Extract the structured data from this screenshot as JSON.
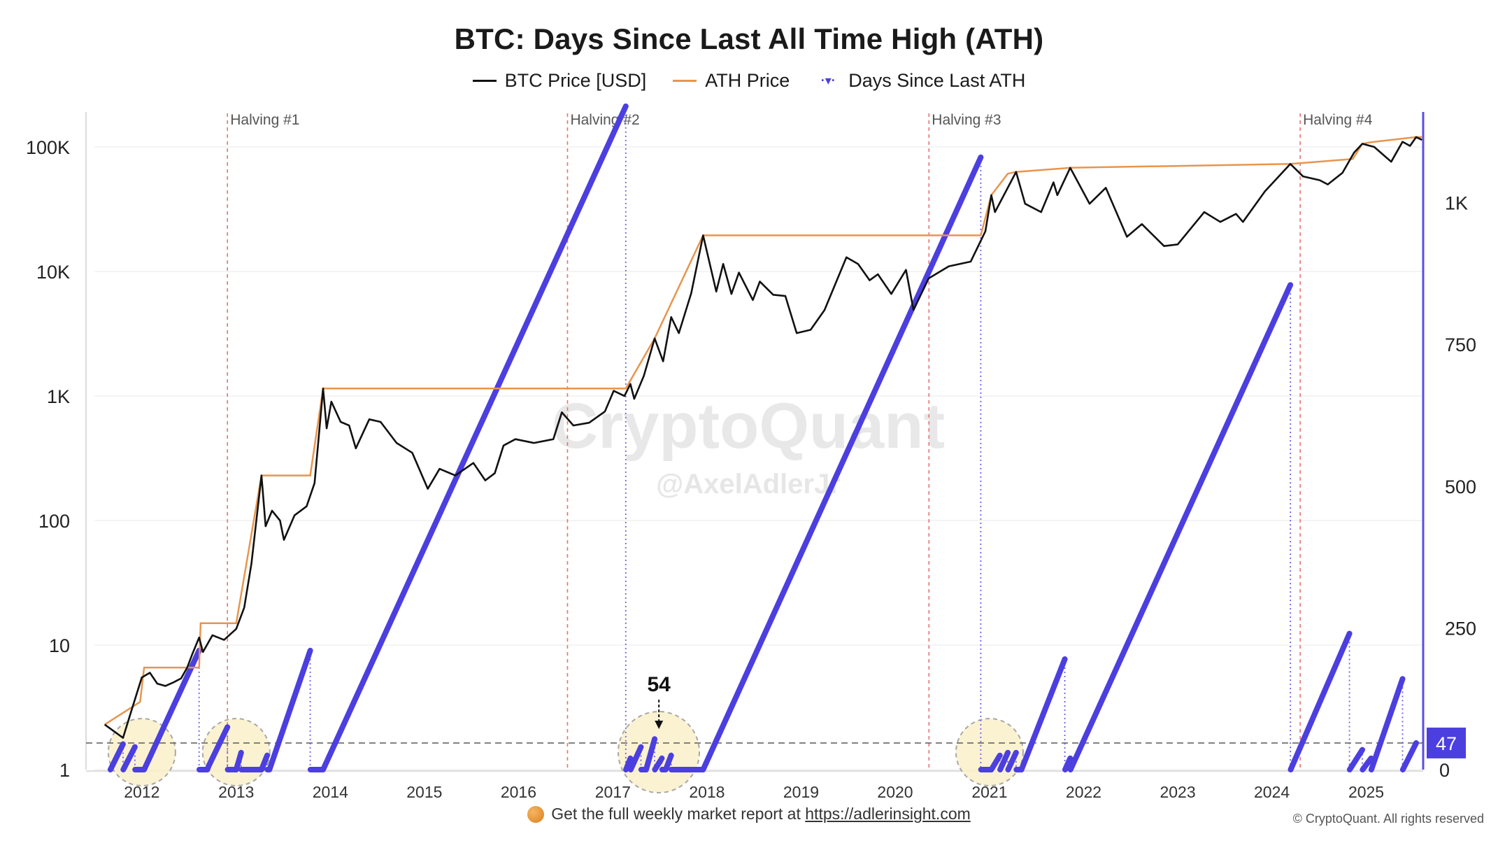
{
  "chart_data": {
    "type": "line",
    "title": "BTC: Days Since Last All Time High (ATH)",
    "legend": [
      {
        "name": "BTC Price [USD]",
        "color": "#111111",
        "style": "line"
      },
      {
        "name": "ATH Price",
        "color": "#e8954d",
        "style": "line"
      },
      {
        "name": "Days Since Last ATH",
        "color": "#4b3fe0",
        "style": "dot"
      }
    ],
    "legend_position": "top-center",
    "x_axis": {
      "type": "date",
      "range": [
        "2011-07-01",
        "2025-08-10"
      ],
      "ticks": [
        "2012",
        "2013",
        "2014",
        "2015",
        "2016",
        "2017",
        "2018",
        "2019",
        "2020",
        "2021",
        "2022",
        "2023",
        "2024",
        "2025"
      ]
    },
    "y_left": {
      "scale": "log",
      "range": [
        1,
        100000
      ],
      "ticks": [
        {
          "value": 1,
          "label": "1"
        },
        {
          "value": 10,
          "label": "10"
        },
        {
          "value": 100,
          "label": "100"
        },
        {
          "value": 1000,
          "label": "1K"
        },
        {
          "value": 10000,
          "label": "10K"
        },
        {
          "value": 100000,
          "label": "100K"
        }
      ]
    },
    "y_right": {
      "scale": "linear",
      "range": [
        0,
        1160
      ],
      "ticks": [
        {
          "value": 0,
          "label": "0"
        },
        {
          "value": 250,
          "label": "250"
        },
        {
          "value": 500,
          "label": "500"
        },
        {
          "value": 750,
          "label": "750"
        },
        {
          "value": 1000,
          "label": "1K"
        }
      ]
    },
    "grid": "horizontal",
    "halvings": [
      {
        "label": "Halving #1",
        "date": "2012-11-28"
      },
      {
        "label": "Halving #2",
        "date": "2016-07-09"
      },
      {
        "label": "Halving #3",
        "date": "2020-05-11"
      },
      {
        "label": "Halving #4",
        "date": "2024-04-20"
      }
    ],
    "threshold": {
      "value": 47,
      "label": "47"
    },
    "annotations": [
      {
        "label": "54",
        "date": "2017-06-15",
        "days": 54
      }
    ],
    "highlight_circles": [
      "2012-01-01",
      "2013-01-01",
      "2017-06-01",
      "2021-01-01"
    ],
    "series": [
      {
        "name": "BTC Price [USD]",
        "color": "#111111",
        "points": [
          [
            "2011-08-10",
            2.3
          ],
          [
            "2011-10-20",
            1.8
          ],
          [
            "2011-11-20",
            2.9
          ],
          [
            "2012-01-01",
            5.5
          ],
          [
            "2012-02-01",
            6.0
          ],
          [
            "2012-03-01",
            4.9
          ],
          [
            "2012-04-01",
            4.7
          ],
          [
            "2012-05-01",
            5.0
          ],
          [
            "2012-06-01",
            5.4
          ],
          [
            "2012-06-25",
            6.6
          ],
          [
            "2012-07-15",
            8.5
          ],
          [
            "2012-08-10",
            11.5
          ],
          [
            "2012-08-25",
            8.8
          ],
          [
            "2012-10-01",
            12.0
          ],
          [
            "2012-11-15",
            11.0
          ],
          [
            "2013-01-01",
            13.5
          ],
          [
            "2013-02-01",
            20
          ],
          [
            "2013-03-01",
            45
          ],
          [
            "2013-04-09",
            230
          ],
          [
            "2013-04-25",
            90
          ],
          [
            "2013-05-20",
            120
          ],
          [
            "2013-06-20",
            100
          ],
          [
            "2013-07-05",
            70
          ],
          [
            "2013-08-15",
            110
          ],
          [
            "2013-10-01",
            130
          ],
          [
            "2013-11-01",
            200
          ],
          [
            "2013-12-04",
            1150
          ],
          [
            "2013-12-18",
            550
          ],
          [
            "2014-01-05",
            900
          ],
          [
            "2014-02-10",
            620
          ],
          [
            "2014-03-15",
            580
          ],
          [
            "2014-04-10",
            380
          ],
          [
            "2014-06-01",
            650
          ],
          [
            "2014-07-15",
            620
          ],
          [
            "2014-09-15",
            420
          ],
          [
            "2014-11-15",
            350
          ],
          [
            "2015-01-14",
            180
          ],
          [
            "2015-03-01",
            260
          ],
          [
            "2015-05-01",
            230
          ],
          [
            "2015-07-10",
            290
          ],
          [
            "2015-08-25",
            210
          ],
          [
            "2015-10-01",
            240
          ],
          [
            "2015-11-04",
            400
          ],
          [
            "2015-12-20",
            450
          ],
          [
            "2016-03-01",
            420
          ],
          [
            "2016-05-15",
            450
          ],
          [
            "2016-06-17",
            740
          ],
          [
            "2016-08-01",
            580
          ],
          [
            "2016-10-01",
            610
          ],
          [
            "2016-12-01",
            750
          ],
          [
            "2017-01-04",
            1100
          ],
          [
            "2017-02-15",
            1000
          ],
          [
            "2017-03-10",
            1250
          ],
          [
            "2017-03-25",
            950
          ],
          [
            "2017-05-01",
            1450
          ],
          [
            "2017-06-12",
            2900
          ],
          [
            "2017-07-15",
            1900
          ],
          [
            "2017-08-15",
            4300
          ],
          [
            "2017-09-14",
            3200
          ],
          [
            "2017-11-01",
            6700
          ],
          [
            "2017-12-17",
            19500
          ],
          [
            "2018-02-06",
            6900
          ],
          [
            "2018-03-05",
            11500
          ],
          [
            "2018-04-06",
            6600
          ],
          [
            "2018-05-05",
            9800
          ],
          [
            "2018-06-28",
            5900
          ],
          [
            "2018-07-25",
            8300
          ],
          [
            "2018-09-15",
            6500
          ],
          [
            "2018-11-01",
            6350
          ],
          [
            "2018-12-15",
            3200
          ],
          [
            "2019-02-07",
            3400
          ],
          [
            "2019-04-02",
            4900
          ],
          [
            "2019-06-26",
            13000
          ],
          [
            "2019-08-10",
            11500
          ],
          [
            "2019-09-24",
            8500
          ],
          [
            "2019-10-26",
            9500
          ],
          [
            "2019-12-17",
            6600
          ],
          [
            "2020-02-12",
            10300
          ],
          [
            "2020-03-12",
            4900
          ],
          [
            "2020-05-10",
            8800
          ],
          [
            "2020-07-27",
            11000
          ],
          [
            "2020-10-20",
            12000
          ],
          [
            "2020-12-16",
            21000
          ],
          [
            "2021-01-08",
            41000
          ],
          [
            "2021-01-22",
            30000
          ],
          [
            "2021-04-14",
            63000
          ],
          [
            "2021-05-19",
            35000
          ],
          [
            "2021-07-20",
            30000
          ],
          [
            "2021-09-06",
            52000
          ],
          [
            "2021-09-21",
            41000
          ],
          [
            "2021-11-10",
            68000
          ],
          [
            "2022-01-24",
            35000
          ],
          [
            "2022-03-28",
            47000
          ],
          [
            "2022-06-18",
            19000
          ],
          [
            "2022-08-15",
            24000
          ],
          [
            "2022-11-09",
            16000
          ],
          [
            "2023-01-01",
            16500
          ],
          [
            "2023-04-14",
            30000
          ],
          [
            "2023-06-15",
            25000
          ],
          [
            "2023-08-15",
            29000
          ],
          [
            "2023-09-11",
            25000
          ],
          [
            "2023-12-05",
            44000
          ],
          [
            "2024-03-13",
            73000
          ],
          [
            "2024-05-01",
            58000
          ],
          [
            "2024-07-05",
            54000
          ],
          [
            "2024-08-05",
            50000
          ],
          [
            "2024-10-01",
            62000
          ],
          [
            "2024-11-15",
            90000
          ],
          [
            "2024-12-17",
            106000
          ],
          [
            "2025-02-01",
            100000
          ],
          [
            "2025-04-08",
            76000
          ],
          [
            "2025-05-22",
            110000
          ],
          [
            "2025-06-20",
            102000
          ],
          [
            "2025-07-14",
            120000
          ],
          [
            "2025-08-05",
            114000
          ]
        ]
      },
      {
        "name": "ATH Price",
        "color": "#e8954d",
        "points": [
          [
            "2011-08-10",
            2.3
          ],
          [
            "2011-12-25",
            3.5
          ],
          [
            "2012-01-10",
            6.6
          ],
          [
            "2012-08-10",
            6.6
          ],
          [
            "2012-08-16",
            15.0
          ],
          [
            "2013-01-01",
            15.0
          ],
          [
            "2013-04-09",
            230
          ],
          [
            "2013-10-15",
            230
          ],
          [
            "2013-12-04",
            1150
          ],
          [
            "2017-02-20",
            1150
          ],
          [
            "2017-06-12",
            2900
          ],
          [
            "2017-12-17",
            19500
          ],
          [
            "2020-11-28",
            19500
          ],
          [
            "2021-01-08",
            41000
          ],
          [
            "2021-03-13",
            61000
          ],
          [
            "2021-04-14",
            63000
          ],
          [
            "2021-11-10",
            68000
          ],
          [
            "2024-03-13",
            73000
          ],
          [
            "2024-11-10",
            80000
          ],
          [
            "2024-12-17",
            106000
          ],
          [
            "2025-01-20",
            109000
          ],
          [
            "2025-07-14",
            120000
          ],
          [
            "2025-08-05",
            120000
          ]
        ]
      },
      {
        "name": "Days Since Last ATH",
        "color": "#4b3fe0",
        "axis": "right",
        "points": [
          [
            "2011-09-01",
            0
          ],
          [
            "2011-10-20",
            45
          ],
          [
            "2011-10-21",
            0
          ],
          [
            "2011-12-05",
            40
          ],
          [
            "2011-12-06",
            0
          ],
          [
            "2012-01-10",
            0
          ],
          [
            "2012-08-10",
            210
          ],
          [
            "2012-08-11",
            0
          ],
          [
            "2012-09-10",
            0
          ],
          [
            "2012-09-11",
            0
          ],
          [
            "2012-09-15",
            5
          ],
          [
            "2012-11-28",
            75
          ],
          [
            "2012-11-29",
            0
          ],
          [
            "2013-01-01",
            0
          ],
          [
            "2013-01-20",
            30
          ],
          [
            "2013-01-21",
            0
          ],
          [
            "2013-02-20",
            0
          ],
          [
            "2013-02-21",
            0
          ],
          [
            "2013-04-09",
            0
          ],
          [
            "2013-05-01",
            25
          ],
          [
            "2013-05-02",
            0
          ],
          [
            "2013-05-10",
            0
          ],
          [
            "2013-10-15",
            210
          ],
          [
            "2013-10-16",
            0
          ],
          [
            "2013-11-15",
            0
          ],
          [
            "2013-12-04",
            0
          ],
          [
            "2017-02-20",
            1170
          ],
          [
            "2017-02-21",
            0
          ],
          [
            "2017-03-10",
            20
          ],
          [
            "2017-03-11",
            0
          ],
          [
            "2017-04-20",
            40
          ],
          [
            "2017-04-21",
            0
          ],
          [
            "2017-05-10",
            0
          ],
          [
            "2017-06-12",
            54
          ],
          [
            "2017-06-13",
            0
          ],
          [
            "2017-07-10",
            20
          ],
          [
            "2017-07-11",
            0
          ],
          [
            "2017-07-25",
            0
          ],
          [
            "2017-08-15",
            25
          ],
          [
            "2017-08-16",
            0
          ],
          [
            "2017-11-01",
            0
          ],
          [
            "2017-12-17",
            0
          ],
          [
            "2020-11-28",
            1080
          ],
          [
            "2020-11-29",
            0
          ],
          [
            "2021-01-08",
            0
          ],
          [
            "2021-02-10",
            25
          ],
          [
            "2021-02-11",
            0
          ],
          [
            "2021-03-13",
            30
          ],
          [
            "2021-03-14",
            0
          ],
          [
            "2021-04-14",
            30
          ],
          [
            "2021-04-15",
            0
          ],
          [
            "2021-05-05",
            0
          ],
          [
            "2021-10-20",
            195
          ],
          [
            "2021-10-21",
            0
          ],
          [
            "2021-11-10",
            20
          ],
          [
            "2021-11-11",
            0
          ],
          [
            "2024-03-13",
            855
          ],
          [
            "2024-03-14",
            0
          ],
          [
            "2024-10-28",
            240
          ],
          [
            "2024-10-29",
            0
          ],
          [
            "2024-12-17",
            35
          ],
          [
            "2024-12-18",
            0
          ],
          [
            "2025-01-20",
            20
          ],
          [
            "2025-01-21",
            0
          ],
          [
            "2025-05-22",
            160
          ],
          [
            "2025-05-23",
            0
          ],
          [
            "2025-07-14",
            47
          ]
        ]
      }
    ]
  },
  "watermark": {
    "brand": "CryptoQuant",
    "handle": "@AxelAdlerJr"
  },
  "footer": {
    "text": "Get the full weekly market report at ",
    "link": "https://adlerinsight.com",
    "copyright": "© CryptoQuant. All rights reserved"
  }
}
